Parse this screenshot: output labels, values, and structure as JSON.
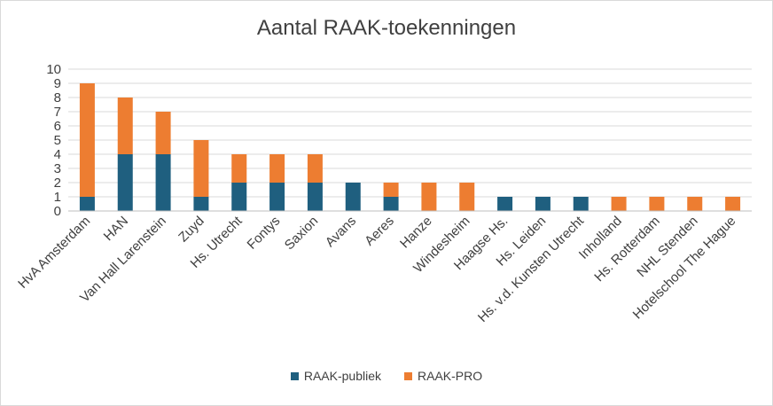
{
  "chart_data": {
    "type": "bar",
    "stacked": true,
    "title": "Aantal RAAK-toekenningen",
    "xlabel": "",
    "ylabel": "",
    "ylim": [
      0,
      10
    ],
    "yticks": [
      0,
      1,
      2,
      3,
      4,
      5,
      6,
      7,
      8,
      9,
      10
    ],
    "grid": true,
    "legend_position": "bottom",
    "categories": [
      "HvA Amsterdam",
      "HAN",
      "Van Hall Larenstein",
      "Zuyd",
      "Hs. Utrecht",
      "Fontys",
      "Saxion",
      "Avans",
      "Aeres",
      "Hanze",
      "Windesheim",
      "Haagse Hs.",
      "Hs. Leiden",
      "Hs. v.d. Kunsten Utrecht",
      "Inholland",
      "Hs. Rotterdam",
      "NHL Stenden",
      "Hotelschool The Hague"
    ],
    "series": [
      {
        "name": "RAAK-publiek",
        "color": "#1f5f7f",
        "values": [
          1,
          4,
          4,
          1,
          2,
          2,
          2,
          2,
          1,
          0,
          0,
          1,
          1,
          1,
          0,
          0,
          0,
          0
        ]
      },
      {
        "name": "RAAK-PRO",
        "color": "#ed7d31",
        "values": [
          8,
          4,
          3,
          4,
          2,
          2,
          2,
          0,
          1,
          2,
          2,
          0,
          0,
          0,
          1,
          1,
          1,
          1
        ]
      }
    ]
  }
}
